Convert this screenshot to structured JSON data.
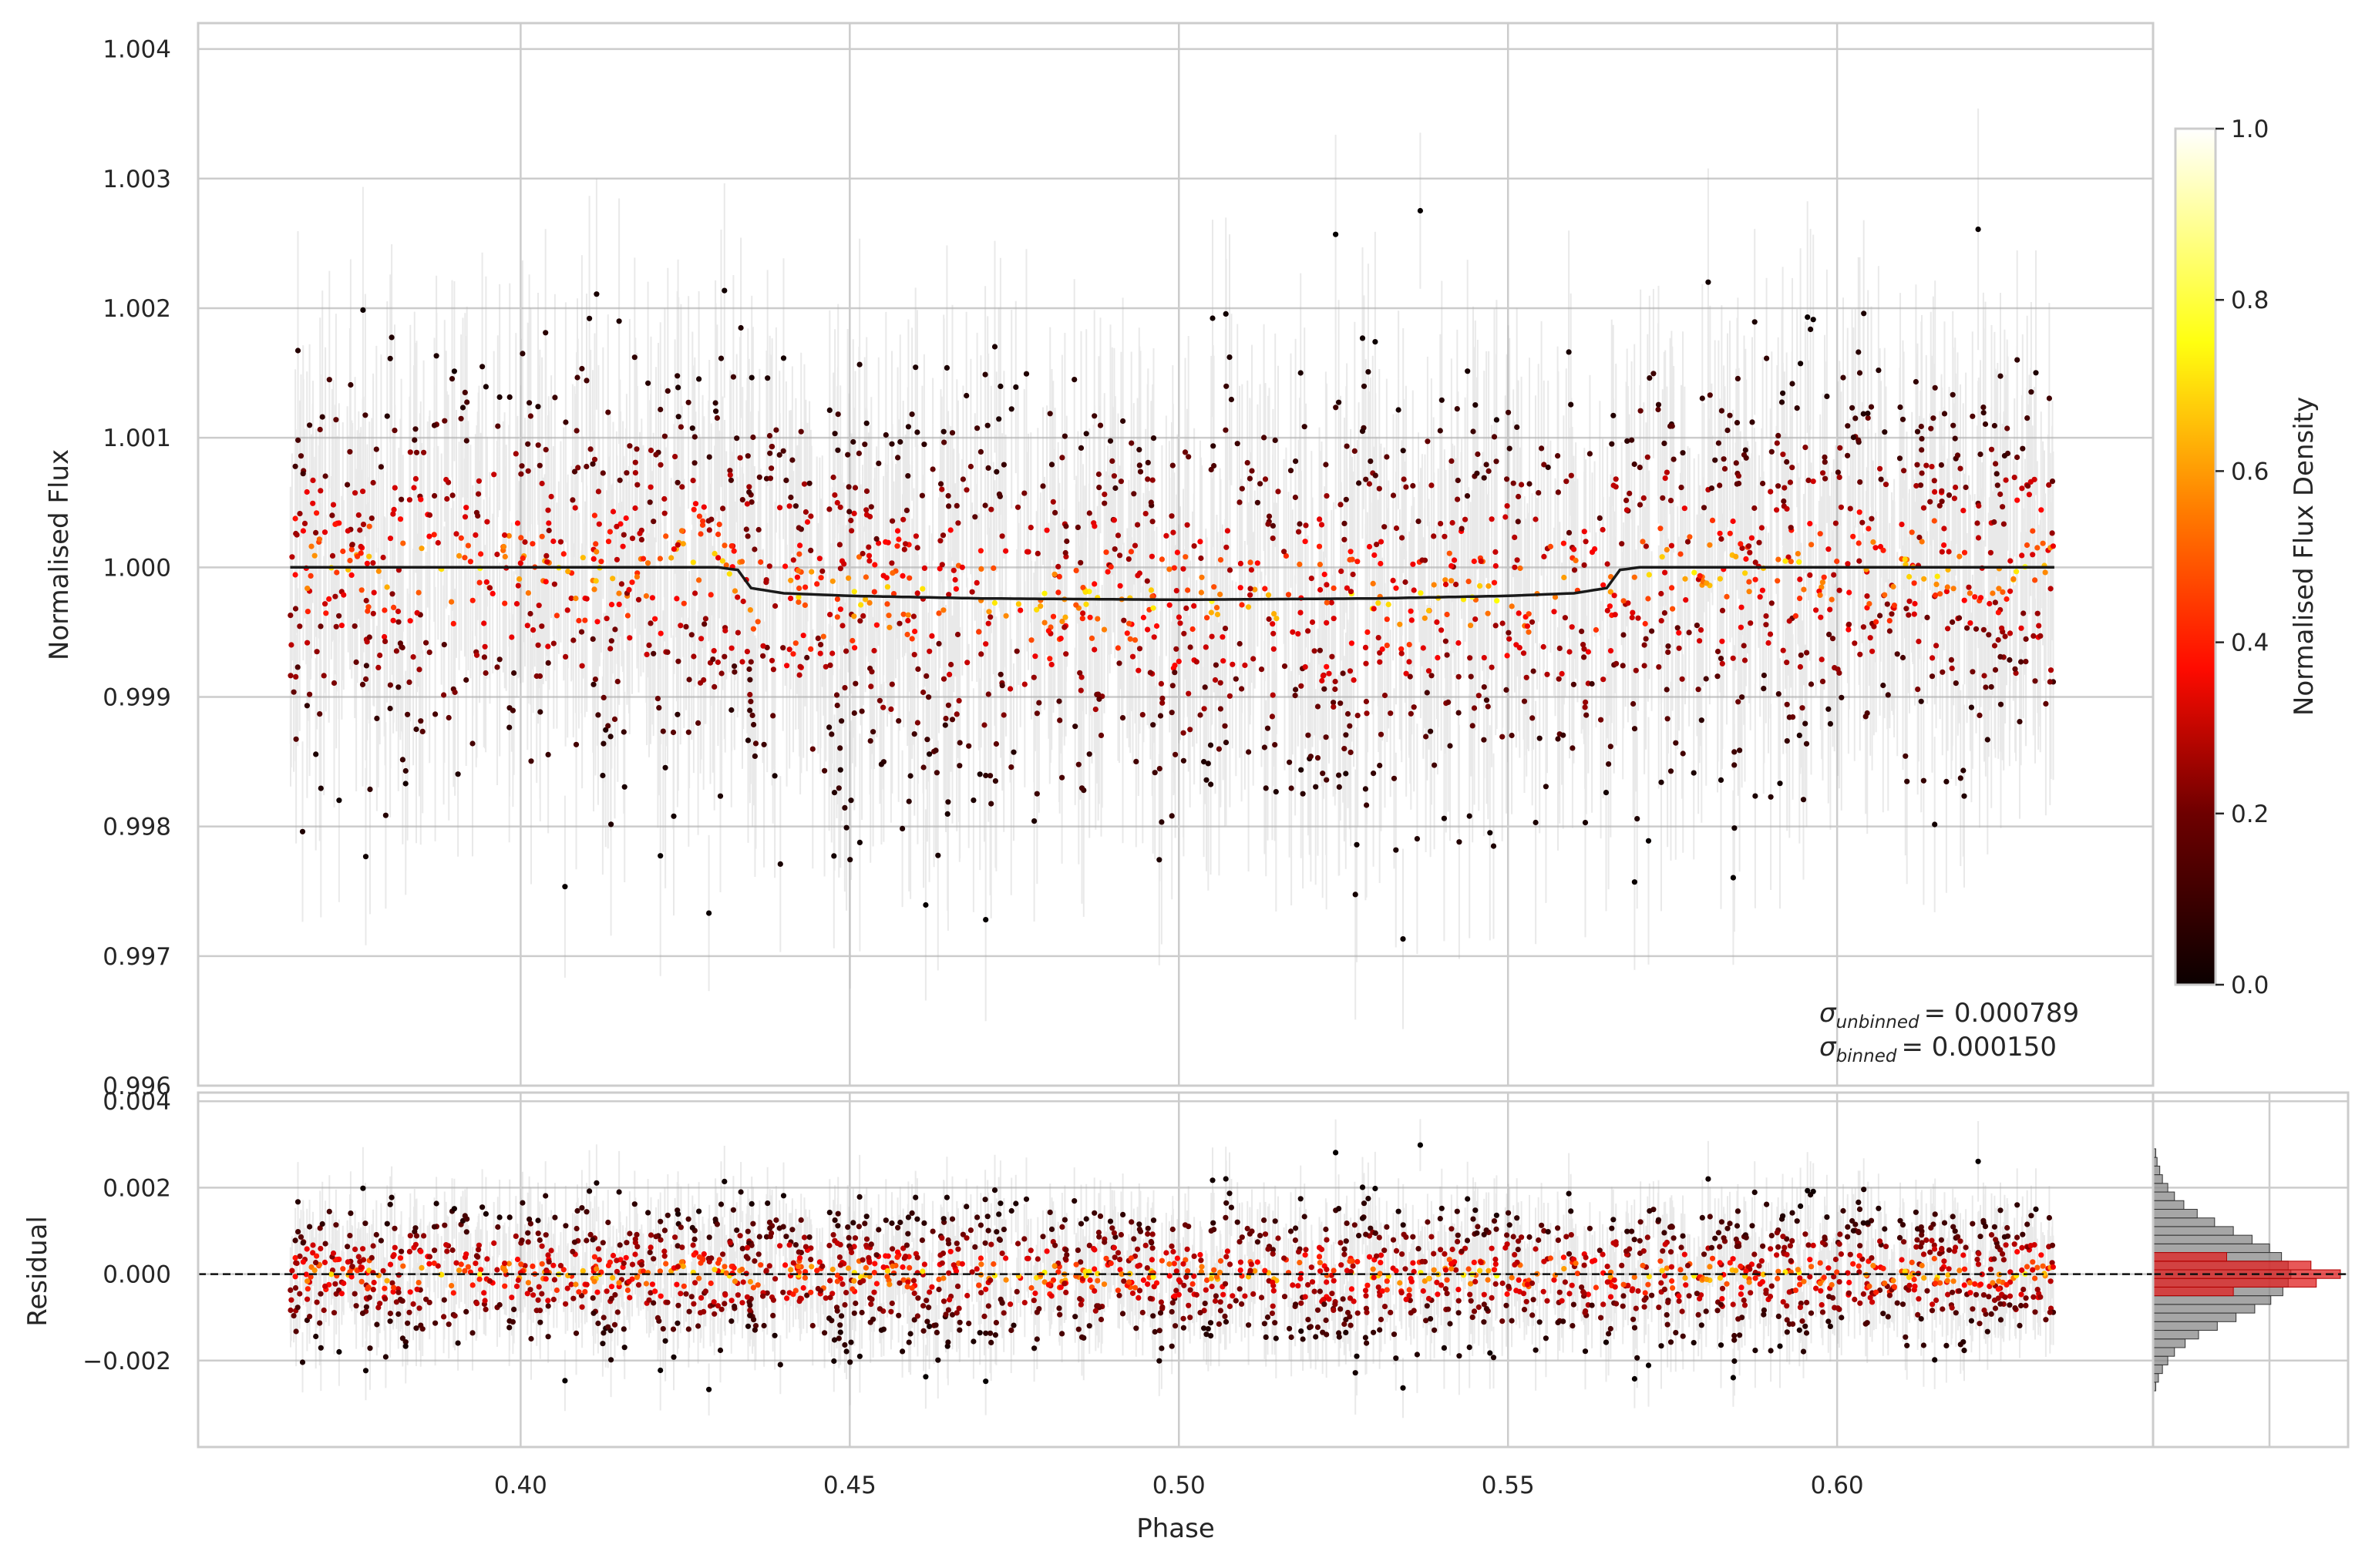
{
  "chart_data": [
    {
      "type": "scatter",
      "panel": "light curve",
      "ylabel": "Normalised Flux",
      "xlim": [
        0.351,
        0.648
      ],
      "ylim": [
        0.996,
        1.0042
      ],
      "yticks": [
        "0.996",
        "0.997",
        "0.998",
        "0.999",
        "1.000",
        "1.001",
        "1.002",
        "1.003",
        "1.004"
      ],
      "grid": true,
      "data_summary": {
        "phase_range": [
          0.365,
          0.633
        ],
        "flux_scatter_sigma": 0.000789,
        "points_approx": 2200,
        "error_bar_typical": 0.0008
      },
      "model_line": {
        "color": "#1a1a1a",
        "points": [
          [
            0.365,
            1.0
          ],
          [
            0.43,
            1.0
          ],
          [
            0.433,
            0.99998
          ],
          [
            0.435,
            0.99984
          ],
          [
            0.44,
            0.9998
          ],
          [
            0.45,
            0.99978
          ],
          [
            0.47,
            0.99976
          ],
          [
            0.5,
            0.99975
          ],
          [
            0.53,
            0.99976
          ],
          [
            0.55,
            0.99978
          ],
          [
            0.56,
            0.9998
          ],
          [
            0.565,
            0.99984
          ],
          [
            0.567,
            0.99998
          ],
          [
            0.57,
            1.0
          ],
          [
            0.633,
            1.0
          ]
        ]
      },
      "annotations": [
        {
          "symbol": "σ",
          "subscript": "unbinned",
          "value": "= 0.000789"
        },
        {
          "symbol": "σ",
          "subscript": "binned",
          "value": "= 0.000150"
        }
      ]
    },
    {
      "type": "scatter",
      "panel": "residuals",
      "xlabel": "Phase",
      "ylabel": "Residual",
      "xlim": [
        0.351,
        0.648
      ],
      "ylim": [
        -0.004,
        0.0042
      ],
      "xticks": [
        "0.40",
        "0.45",
        "0.50",
        "0.55",
        "0.60"
      ],
      "yticks": [
        "−0.002",
        "0.000",
        "0.002",
        "0.004"
      ],
      "zero_line": {
        "value": 0.0,
        "style": "dashed",
        "color": "#000000"
      },
      "grid": true
    },
    {
      "type": "histogram",
      "panel": "residual distribution",
      "orientation": "horizontal",
      "bins_center": [
        -0.0026,
        -0.0024,
        -0.0022,
        -0.002,
        -0.0018,
        -0.0016,
        -0.0014,
        -0.0012,
        -0.001,
        -0.0008,
        -0.0006,
        -0.0004,
        -0.0002,
        0.0,
        0.0002,
        0.0004,
        0.0006,
        0.0008,
        0.001,
        0.0012,
        0.0014,
        0.0016,
        0.0018,
        0.002,
        0.0022,
        0.0024,
        0.0026,
        0.0028
      ],
      "counts_unbinned": [
        2,
        4,
        7,
        11,
        16,
        24,
        34,
        48,
        62,
        76,
        88,
        97,
        101,
        103,
        101,
        96,
        87,
        74,
        60,
        46,
        33,
        23,
        16,
        11,
        7,
        5,
        3,
        2
      ],
      "counts_binned": [
        0,
        0,
        0,
        0,
        0,
        0,
        0,
        0,
        0,
        0,
        0,
        60,
        122,
        140,
        118,
        55,
        0,
        0,
        0,
        0,
        0,
        0,
        0,
        0,
        0,
        0,
        0,
        0
      ],
      "colors": {
        "unbinned": "#888888",
        "binned": "#e02020"
      }
    },
    {
      "type": "colorbar",
      "label": "Normalised Flux Density",
      "range": [
        0.0,
        1.0
      ],
      "ticks": [
        "0.0",
        "0.2",
        "0.4",
        "0.6",
        "0.8",
        "1.0"
      ],
      "colormap": "hot"
    }
  ]
}
